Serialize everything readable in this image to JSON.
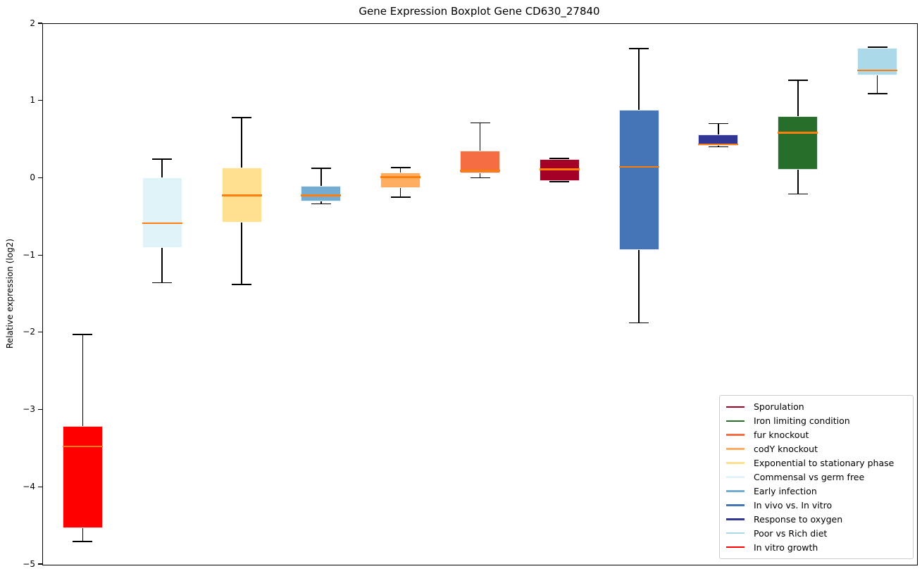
{
  "title": "Gene Expression Boxplot Gene CD630_27840",
  "chart_data": {
    "type": "boxplot",
    "title": "Gene Expression Boxplot Gene CD630_27840",
    "xlabel": "",
    "ylabel": "Relative expression (log2)",
    "ylim": [
      -5,
      2
    ],
    "yticks": [
      2,
      1,
      0,
      -1,
      -2,
      -3,
      -4,
      -5
    ],
    "grid": false,
    "median_color": "#ff7f0e",
    "whisker_color": "#000000",
    "series": [
      {
        "name": "In vitro growth",
        "color": "#ff0000",
        "whisker_low": -4.7,
        "q1": -4.53,
        "median": -3.47,
        "q3": -3.2,
        "whisker_high": -2.02
      },
      {
        "name": "Commensal vs germ free",
        "color": "#e0f3f8",
        "whisker_low": -1.35,
        "q1": -0.9,
        "median": -0.58,
        "q3": 0.01,
        "whisker_high": 0.25
      },
      {
        "name": "Exponential to stationary phase",
        "color": "#fee090",
        "whisker_low": -1.37,
        "q1": -0.57,
        "median": -0.22,
        "q3": 0.14,
        "whisker_high": 0.79
      },
      {
        "name": "Early infection",
        "color": "#74add1",
        "whisker_low": -0.33,
        "q1": -0.3,
        "median": -0.22,
        "q3": -0.1,
        "whisker_high": 0.13
      },
      {
        "name": "codY knockout",
        "color": "#fdae61",
        "whisker_low": -0.24,
        "q1": -0.12,
        "median": 0.02,
        "q3": 0.08,
        "whisker_high": 0.14
      },
      {
        "name": "fur knockout",
        "color": "#f46d43",
        "whisker_low": 0.01,
        "q1": 0.07,
        "median": 0.1,
        "q3": 0.36,
        "whisker_high": 0.72
      },
      {
        "name": "Sporulation",
        "color": "#a50026",
        "whisker_low": -0.04,
        "q1": -0.03,
        "median": 0.12,
        "q3": 0.25,
        "whisker_high": 0.26
      },
      {
        "name": "In vivo vs. In vitro",
        "color": "#4575b4",
        "whisker_low": -1.87,
        "q1": -0.93,
        "median": 0.15,
        "q3": 0.89,
        "whisker_high": 1.68
      },
      {
        "name": "Response to oxygen",
        "color": "#313695",
        "whisker_low": 0.41,
        "q1": 0.42,
        "median": 0.44,
        "q3": 0.57,
        "whisker_high": 0.71
      },
      {
        "name": "Iron limiting condition",
        "color": "#276e2b",
        "whisker_low": -0.2,
        "q1": 0.11,
        "median": 0.59,
        "q3": 0.81,
        "whisker_high": 1.27
      },
      {
        "name": "Poor vs Rich diet",
        "color": "#abd9e9",
        "whisker_low": 1.1,
        "q1": 1.33,
        "median": 1.4,
        "q3": 1.69,
        "whisker_high": 1.7
      }
    ],
    "legend": {
      "position": "lower right",
      "entries": [
        {
          "label": "Sporulation",
          "color": "#a50026"
        },
        {
          "label": "Iron limiting condition",
          "color": "#276e2b"
        },
        {
          "label": "fur knockout",
          "color": "#f46d43"
        },
        {
          "label": "codY knockout",
          "color": "#fdae61"
        },
        {
          "label": "Exponential to stationary phase",
          "color": "#fee090"
        },
        {
          "label": "Commensal vs germ free",
          "color": "#e0f3f8"
        },
        {
          "label": "Early infection",
          "color": "#74add1"
        },
        {
          "label": "In vivo vs. In vitro",
          "color": "#4575b4"
        },
        {
          "label": "Response to oxygen",
          "color": "#313695"
        },
        {
          "label": "Poor vs Rich diet",
          "color": "#abd9e9"
        },
        {
          "label": "In vitro growth",
          "color": "#ff0000"
        }
      ]
    }
  }
}
